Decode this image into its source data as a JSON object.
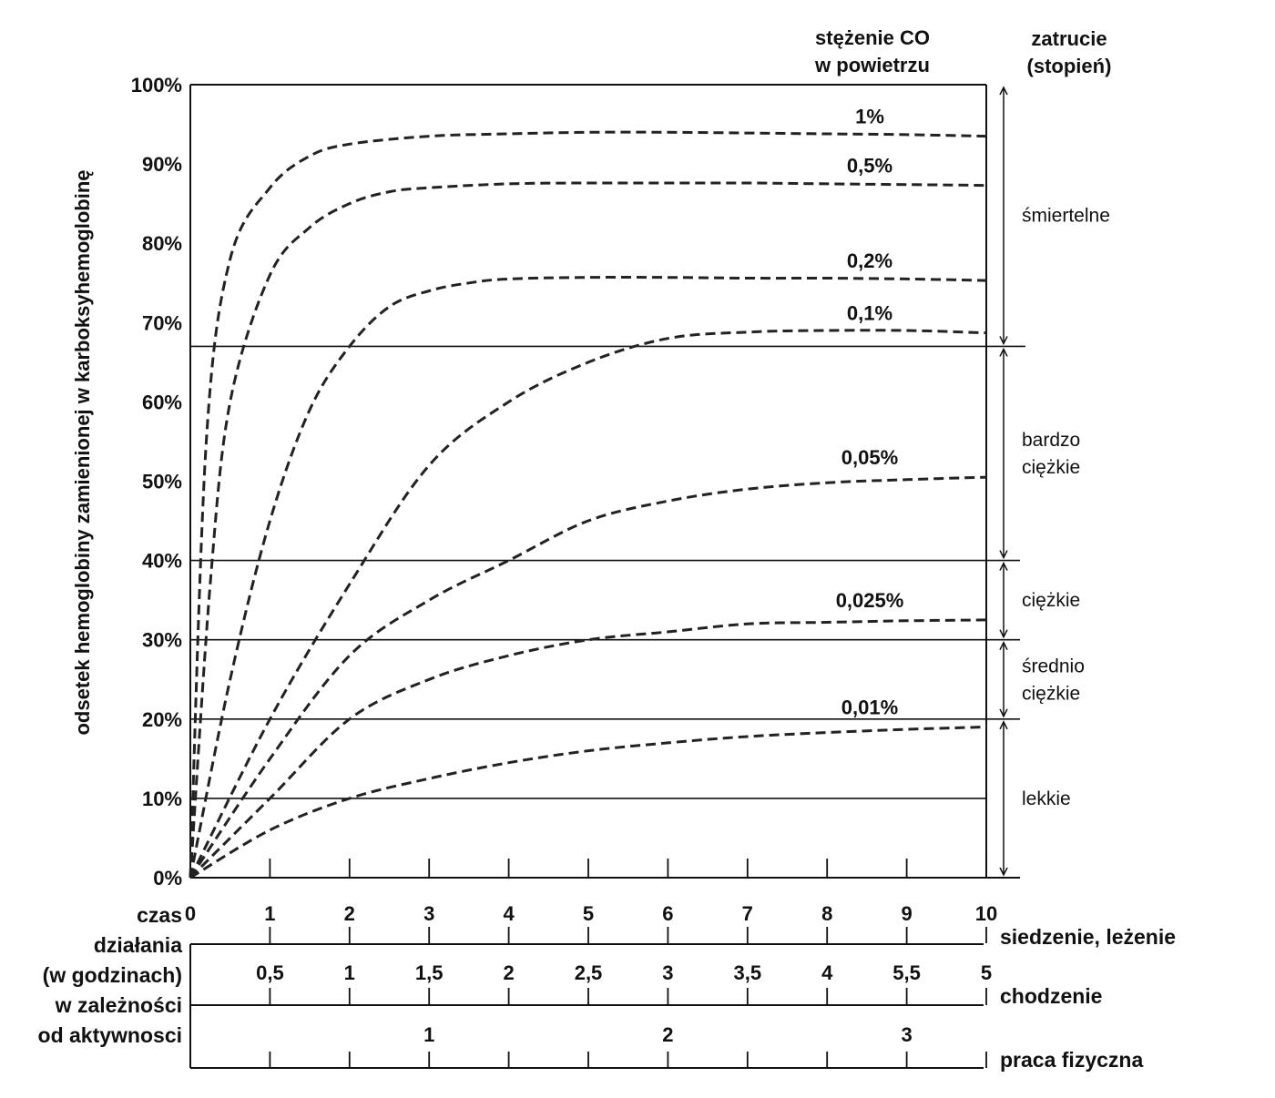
{
  "chart_data": {
    "type": "line",
    "title": "",
    "ylabel": "odsetek  hemoglobiny zamienionej w karboksyhemoglobinę",
    "ylim": [
      0,
      100
    ],
    "y_ticks": [
      "0%",
      "10%",
      "20%",
      "30%",
      "40%",
      "50%",
      "60%",
      "70%",
      "80%",
      "90%",
      "100%"
    ],
    "xlim": [
      0,
      10
    ],
    "series_header": [
      "stężenie CO",
      "w powietrzu"
    ],
    "series": [
      {
        "name": "1%",
        "x": [
          0,
          0.2,
          0.5,
          1,
          1.5,
          2,
          3,
          4,
          5,
          6,
          7,
          8,
          9,
          10
        ],
        "values": [
          0,
          55,
          78,
          87,
          91,
          92.5,
          93.5,
          93.8,
          94,
          94,
          93.9,
          93.8,
          93.7,
          93.5
        ]
      },
      {
        "name": "0,5%",
        "x": [
          0,
          0.25,
          0.5,
          1,
          1.5,
          2,
          2.5,
          3,
          4,
          5,
          6,
          7,
          8,
          9,
          10
        ],
        "values": [
          0,
          37,
          60,
          76,
          82,
          85,
          86.5,
          87,
          87.5,
          87.6,
          87.6,
          87.6,
          87.5,
          87.4,
          87.3
        ]
      },
      {
        "name": "0,2%",
        "x": [
          0,
          0.5,
          1,
          1.5,
          2,
          2.5,
          3,
          3.5,
          4,
          5,
          6,
          7,
          8,
          9,
          10
        ],
        "values": [
          0,
          25,
          45,
          59,
          67,
          72,
          74,
          75,
          75.5,
          75.7,
          75.7,
          75.6,
          75.6,
          75.5,
          75.3
        ]
      },
      {
        "name": "0,1%",
        "x": [
          0,
          1,
          2,
          3,
          4,
          5,
          6,
          7,
          8,
          9,
          10
        ],
        "values": [
          0,
          20,
          37,
          52,
          60,
          65,
          68,
          68.8,
          69,
          69,
          68.7
        ]
      },
      {
        "name": "0,05%",
        "x": [
          0,
          1,
          2,
          3,
          4,
          5,
          6,
          7,
          8,
          9,
          10
        ],
        "values": [
          0,
          15,
          28,
          35,
          40,
          45,
          47.5,
          49,
          49.8,
          50.2,
          50.5
        ]
      },
      {
        "name": "0,025%",
        "x": [
          0,
          1,
          2,
          3,
          4,
          5,
          6,
          7,
          8,
          9,
          10
        ],
        "values": [
          0,
          10,
          20,
          25,
          28,
          30,
          31,
          32,
          32.2,
          32.4,
          32.5
        ]
      },
      {
        "name": "0,01%",
        "x": [
          0,
          1,
          2,
          3,
          4,
          5,
          6,
          7,
          8,
          9,
          10
        ],
        "values": [
          0,
          6,
          10,
          12.5,
          14.5,
          16,
          17,
          17.8,
          18.3,
          18.7,
          19
        ]
      }
    ],
    "severity_header": [
      "zatrucie",
      "(stopień)"
    ],
    "severity_bands": [
      {
        "from": 0,
        "to": 20,
        "label": [
          "lekkie"
        ]
      },
      {
        "from": 20,
        "to": 30,
        "label": [
          "średnio",
          "ciężkie"
        ]
      },
      {
        "from": 30,
        "to": 40,
        "label": [
          "ciężkie"
        ]
      },
      {
        "from": 40,
        "to": 67,
        "label": [
          "bardzo",
          "ciężkie"
        ]
      },
      {
        "from": 67,
        "to": 100,
        "label": [
          "śmiertelne"
        ]
      }
    ],
    "horizontal_lines": [
      10,
      20,
      30,
      40,
      67
    ],
    "time_axis_label": [
      "czas",
      "działania",
      "(w godzinach)",
      "w zależności",
      "od aktywnosci"
    ],
    "time_scales": [
      {
        "name": "siedzenie, leżenie",
        "ticks": [
          "0",
          "1",
          "2",
          "3",
          "4",
          "5",
          "6",
          "7",
          "8",
          "9",
          "10"
        ]
      },
      {
        "name": "chodzenie",
        "ticks": [
          "0,5",
          "1",
          "1,5",
          "2",
          "2,5",
          "3",
          "3,5",
          "4",
          "5,5",
          "5"
        ]
      },
      {
        "name": "praca fizyczna",
        "ticks": [
          "1",
          "2",
          "3"
        ]
      }
    ],
    "grid": false,
    "legend": "inline labels at line ends"
  }
}
